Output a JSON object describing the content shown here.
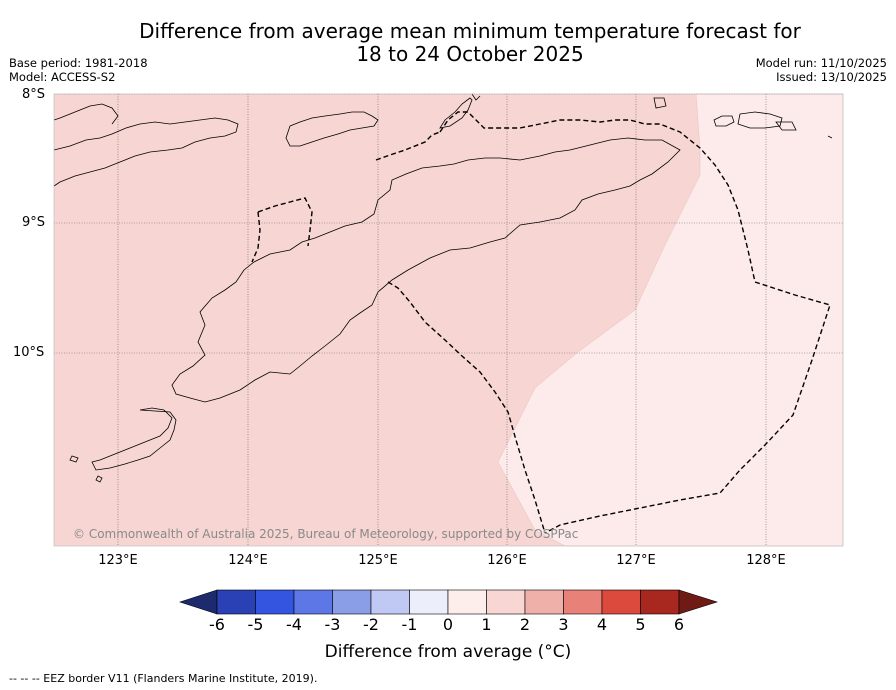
{
  "title_line1": "Difference from average mean minimum temperature forecast for",
  "title_line2": "18 to 24 October 2025",
  "base_period": "Base period: 1981-2018",
  "model": "Model: ACCESS-S2",
  "model_run": "Model run: 11/10/2025",
  "issued": "Issued: 13/10/2025",
  "lat_labels": [
    "8°S",
    "9°S",
    "10°S"
  ],
  "lon_labels": [
    "123°E",
    "124°E",
    "125°E",
    "126°E",
    "127°E",
    "128°E"
  ],
  "copyright": "© Commonwealth of Australia 2025, Bureau of Meteorology, supported by COSPPac",
  "colorbar_ticks": [
    "-6",
    "-5",
    "-4",
    "-3",
    "-2",
    "-1",
    "0",
    "1",
    "2",
    "3",
    "4",
    "5",
    "6"
  ],
  "colorbar_label": "Difference from average (°C)",
  "colorbar_colors": [
    "#1d2a6e",
    "#2a41b5",
    "#3355e0",
    "#5d78e6",
    "#8a9ee8",
    "#bfc9f3",
    "#eceffb",
    "#fdeeec",
    "#f7d6d3",
    "#f0b0aa",
    "#e88177",
    "#dc4a3d",
    "#a8281f",
    "#701a16"
  ],
  "footnote": "-- -- -- EEZ border V11 (Flanders Marine Institute, 2019).",
  "map_fill_colors": {
    "one_to_two": "#f6d5d3",
    "zero_to_one": "#fcebea"
  }
}
